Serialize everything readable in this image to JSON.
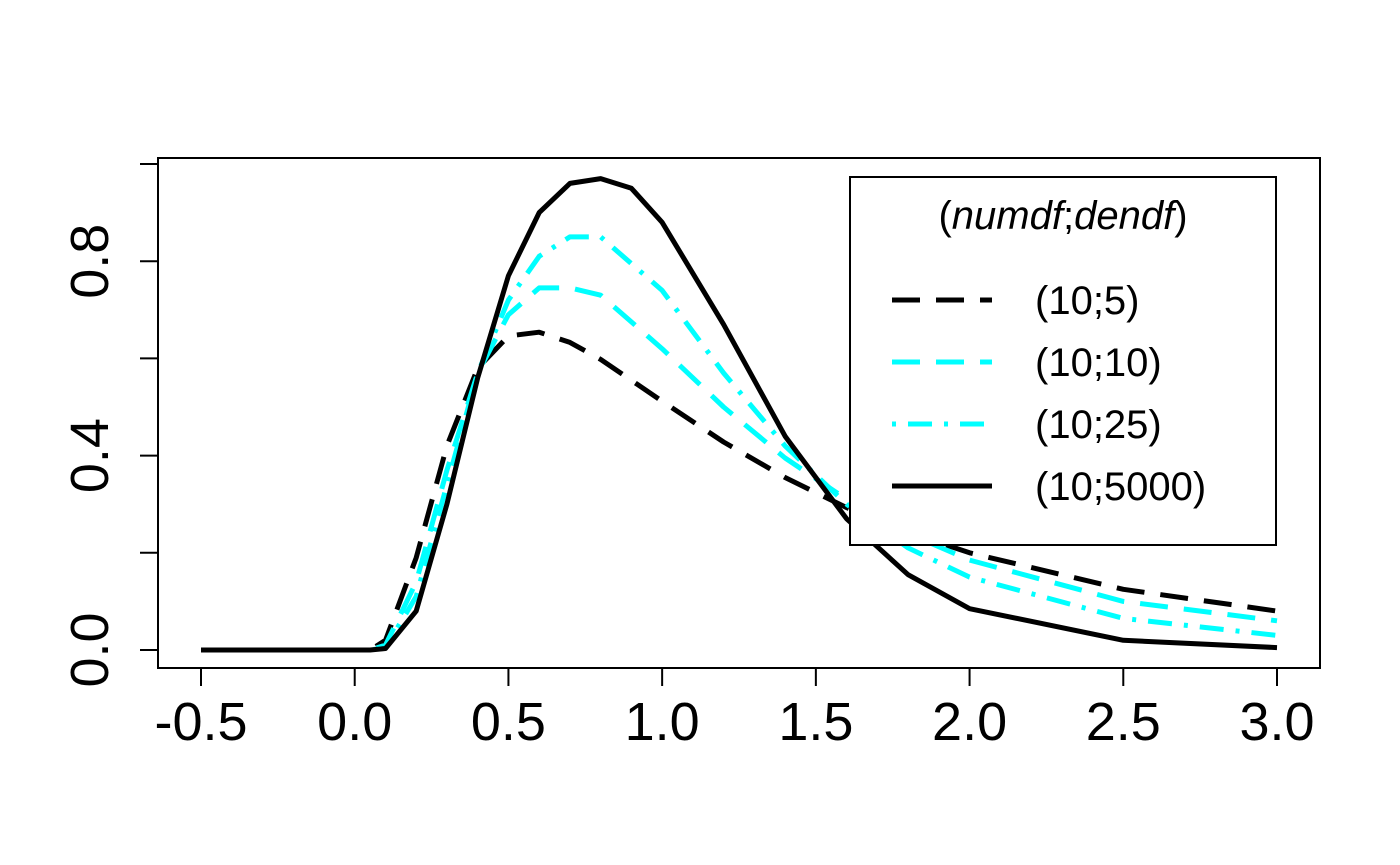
{
  "chart_data": {
    "type": "line",
    "title": "",
    "xlabel": "",
    "ylabel": "",
    "xlim": [
      -0.5,
      3.0
    ],
    "ylim": [
      0.0,
      1.0
    ],
    "x_ticks": [
      -0.5,
      0.0,
      0.5,
      1.0,
      1.5,
      2.0,
      2.5,
      3.0
    ],
    "x_tick_labels": [
      "-0.5",
      "0.0",
      "0.5",
      "1.0",
      "1.5",
      "2.0",
      "2.5",
      "3.0"
    ],
    "y_ticks": [
      0.0,
      0.2,
      0.4,
      0.6,
      0.8,
      1.0
    ],
    "y_tick_labels": [
      "0.0",
      "",
      "0.4",
      "",
      "0.8",
      ""
    ],
    "grid": false,
    "legend": {
      "position": "top-right",
      "title_prefix": "(",
      "title_numdf": "numdf",
      "title_sep": ";",
      "title_dendf": "dendf",
      "title_suffix": ")"
    },
    "series": [
      {
        "name": "(10;5)",
        "color": "#000000",
        "style": "dashed",
        "x": [
          -0.5,
          0.0,
          0.05,
          0.1,
          0.2,
          0.3,
          0.4,
          0.5,
          0.6,
          0.7,
          0.8,
          1.0,
          1.2,
          1.4,
          1.6,
          1.8,
          2.0,
          2.5,
          3.0
        ],
        "y": [
          0.0,
          0.0,
          0.0,
          0.02,
          0.19,
          0.42,
          0.58,
          0.646,
          0.654,
          0.633,
          0.598,
          0.512,
          0.428,
          0.355,
          0.293,
          0.242,
          0.2,
          0.125,
          0.08
        ]
      },
      {
        "name": "(10;10)",
        "color": "#00FFFF",
        "style": "dashed",
        "x": [
          -0.5,
          0.0,
          0.05,
          0.1,
          0.2,
          0.3,
          0.4,
          0.5,
          0.6,
          0.7,
          0.8,
          1.0,
          1.2,
          1.4,
          1.6,
          1.8,
          2.0,
          2.5,
          3.0
        ],
        "y": [
          0.0,
          0.0,
          0.0,
          0.01,
          0.14,
          0.37,
          0.57,
          0.69,
          0.745,
          0.745,
          0.73,
          0.62,
          0.5,
          0.395,
          0.31,
          0.24,
          0.185,
          0.1,
          0.06
        ]
      },
      {
        "name": "(10;25)",
        "color": "#00FFFF",
        "style": "dotdash",
        "x": [
          -0.5,
          0.0,
          0.05,
          0.1,
          0.2,
          0.3,
          0.4,
          0.5,
          0.6,
          0.7,
          0.8,
          1.0,
          1.2,
          1.4,
          1.6,
          1.8,
          2.0,
          2.5,
          3.0
        ],
        "y": [
          0.0,
          0.0,
          0.0,
          0.005,
          0.11,
          0.34,
          0.57,
          0.72,
          0.81,
          0.85,
          0.85,
          0.74,
          0.57,
          0.42,
          0.3,
          0.21,
          0.15,
          0.065,
          0.03
        ]
      },
      {
        "name": "(10;5000)",
        "color": "#000000",
        "style": "solid",
        "x": [
          -0.5,
          0.0,
          0.05,
          0.1,
          0.2,
          0.3,
          0.4,
          0.5,
          0.6,
          0.7,
          0.8,
          0.9,
          1.0,
          1.2,
          1.4,
          1.6,
          1.8,
          2.0,
          2.5,
          3.0
        ],
        "y": [
          0.0,
          0.0,
          0.0,
          0.003,
          0.08,
          0.3,
          0.56,
          0.77,
          0.9,
          0.96,
          0.97,
          0.95,
          0.88,
          0.67,
          0.44,
          0.27,
          0.155,
          0.085,
          0.02,
          0.005
        ]
      }
    ]
  }
}
